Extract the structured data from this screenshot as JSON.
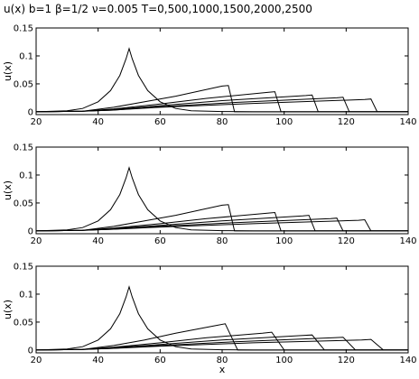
{
  "title": "u(x)      b=1     β=1/2    ν=0.005     T=0,500,1000,1500,2000,2500",
  "chart_data": [
    {
      "type": "line",
      "title": "",
      "xlabel": "",
      "ylabel": "u(x)",
      "xlim": [
        20,
        140
      ],
      "ylim": [
        -0.005,
        0.15
      ],
      "xticks": [
        20,
        40,
        60,
        80,
        100,
        120,
        140
      ],
      "yticks": [
        0,
        0.05,
        0.1,
        0.15
      ],
      "ytick_labels": [
        "0",
        "0.05",
        "0.1",
        "0.15"
      ],
      "series": [
        {
          "x": [
            20,
            30,
            35,
            40,
            44,
            47,
            49,
            50,
            51,
            53,
            56,
            60,
            65,
            70,
            80,
            90,
            140
          ],
          "y": [
            0,
            0.002,
            0.006,
            0.018,
            0.038,
            0.065,
            0.095,
            0.113,
            0.095,
            0.065,
            0.038,
            0.018,
            0.006,
            0.002,
            0.0005,
            0,
            0
          ]
        },
        {
          "x": [
            20,
            35,
            45,
            55,
            65,
            80,
            82,
            84,
            140
          ],
          "y": [
            0,
            0.001,
            0.008,
            0.018,
            0.028,
            0.046,
            0.047,
            0.0,
            0
          ]
        },
        {
          "x": [
            20,
            35,
            45,
            60,
            75,
            95,
            97,
            99,
            140
          ],
          "y": [
            0,
            0.001,
            0.005,
            0.014,
            0.024,
            0.035,
            0.036,
            0.0,
            0
          ]
        },
        {
          "x": [
            20,
            35,
            45,
            60,
            80,
            107,
            109,
            111,
            140
          ],
          "y": [
            0,
            0.001,
            0.004,
            0.011,
            0.02,
            0.029,
            0.03,
            0.0,
            0
          ]
        },
        {
          "x": [
            20,
            35,
            45,
            60,
            85,
            117,
            119,
            121,
            140
          ],
          "y": [
            0,
            0.001,
            0.003,
            0.009,
            0.017,
            0.025,
            0.026,
            0.0,
            0
          ]
        },
        {
          "x": [
            20,
            35,
            45,
            60,
            90,
            126,
            128,
            130,
            140
          ],
          "y": [
            0,
            0.001,
            0.003,
            0.008,
            0.015,
            0.022,
            0.023,
            0.0,
            0
          ]
        }
      ]
    },
    {
      "type": "line",
      "title": "",
      "xlabel": "",
      "ylabel": "u(x)",
      "xlim": [
        20,
        140
      ],
      "ylim": [
        -0.005,
        0.15
      ],
      "xticks": [
        20,
        40,
        60,
        80,
        100,
        120,
        140
      ],
      "yticks": [
        0,
        0.05,
        0.1,
        0.15
      ],
      "ytick_labels": [
        "0",
        "0.05",
        "0.1",
        "0.15"
      ],
      "series": [
        {
          "x": [
            20,
            30,
            35,
            40,
            44,
            47,
            49,
            50,
            51,
            53,
            56,
            60,
            65,
            70,
            80,
            90,
            140
          ],
          "y": [
            0,
            0.002,
            0.006,
            0.018,
            0.038,
            0.065,
            0.095,
            0.113,
            0.095,
            0.065,
            0.038,
            0.018,
            0.006,
            0.002,
            0.0005,
            0,
            0
          ]
        },
        {
          "x": [
            20,
            35,
            45,
            55,
            65,
            80,
            82,
            84,
            140
          ],
          "y": [
            0,
            0.001,
            0.008,
            0.018,
            0.028,
            0.046,
            0.047,
            0.0,
            0
          ]
        },
        {
          "x": [
            20,
            35,
            45,
            60,
            75,
            95,
            97,
            99,
            140
          ],
          "y": [
            0,
            0.001,
            0.005,
            0.013,
            0.022,
            0.032,
            0.033,
            0.0,
            0
          ]
        },
        {
          "x": [
            20,
            35,
            45,
            60,
            80,
            106,
            108,
            110,
            140
          ],
          "y": [
            0,
            0.001,
            0.004,
            0.01,
            0.018,
            0.027,
            0.028,
            0.0,
            0
          ]
        },
        {
          "x": [
            20,
            35,
            45,
            60,
            85,
            115,
            117,
            119,
            140
          ],
          "y": [
            0,
            0.001,
            0.003,
            0.008,
            0.015,
            0.022,
            0.023,
            0.0,
            0
          ]
        },
        {
          "x": [
            20,
            35,
            45,
            60,
            90,
            124,
            126,
            128,
            140
          ],
          "y": [
            0,
            0.001,
            0.003,
            0.007,
            0.013,
            0.019,
            0.02,
            0.0,
            0
          ]
        }
      ]
    },
    {
      "type": "line",
      "title": "",
      "xlabel": "x",
      "ylabel": "u(x)",
      "xlim": [
        20,
        140
      ],
      "ylim": [
        -0.005,
        0.15
      ],
      "xticks": [
        20,
        40,
        60,
        80,
        100,
        120,
        140
      ],
      "yticks": [
        0,
        0.05,
        0.1,
        0.15
      ],
      "ytick_labels": [
        "0",
        "0.05",
        "0.1",
        "0.15"
      ],
      "series": [
        {
          "x": [
            20,
            30,
            35,
            40,
            44,
            47,
            49,
            50,
            51,
            53,
            56,
            60,
            65,
            70,
            80,
            90,
            140
          ],
          "y": [
            0,
            0.002,
            0.006,
            0.018,
            0.038,
            0.065,
            0.095,
            0.113,
            0.095,
            0.065,
            0.038,
            0.018,
            0.006,
            0.002,
            0.0005,
            0,
            0
          ]
        },
        {
          "x": [
            20,
            35,
            45,
            55,
            65,
            78,
            81,
            85,
            140
          ],
          "y": [
            0,
            0.001,
            0.008,
            0.018,
            0.03,
            0.044,
            0.047,
            0.0,
            0
          ]
        },
        {
          "x": [
            20,
            35,
            45,
            60,
            75,
            93,
            96,
            100,
            140
          ],
          "y": [
            0,
            0.001,
            0.005,
            0.013,
            0.022,
            0.03,
            0.032,
            0.0,
            0
          ]
        },
        {
          "x": [
            20,
            35,
            45,
            60,
            80,
            106,
            109,
            113,
            140
          ],
          "y": [
            0,
            0.001,
            0.004,
            0.01,
            0.018,
            0.026,
            0.027,
            0.0,
            0
          ]
        },
        {
          "x": [
            20,
            35,
            45,
            60,
            85,
            116,
            119,
            123,
            140
          ],
          "y": [
            0,
            0.001,
            0.003,
            0.008,
            0.015,
            0.022,
            0.023,
            0.0,
            0
          ]
        },
        {
          "x": [
            20,
            35,
            45,
            60,
            90,
            125,
            128,
            132,
            140
          ],
          "y": [
            0,
            0.001,
            0.003,
            0.007,
            0.013,
            0.018,
            0.019,
            0.0,
            0
          ]
        }
      ]
    }
  ]
}
